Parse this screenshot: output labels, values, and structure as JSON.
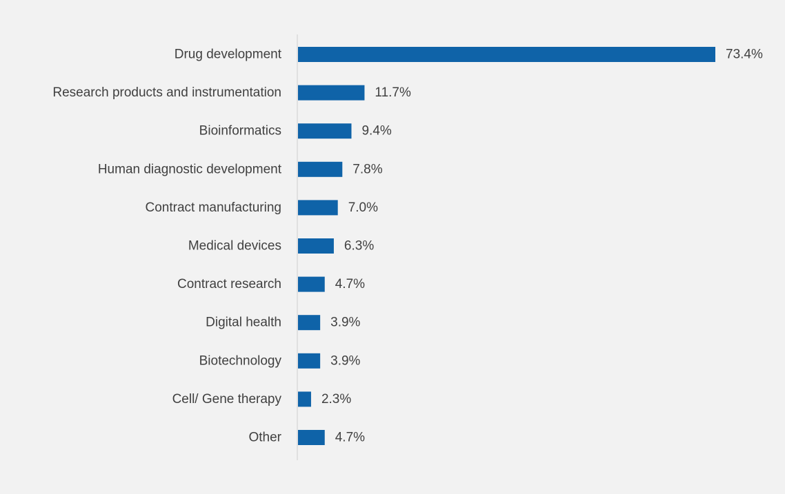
{
  "chart_data": {
    "type": "bar",
    "orientation": "horizontal",
    "categories": [
      "Drug development",
      "Research products and instrumentation",
      "Bioinformatics",
      "Human diagnostic development",
      "Contract manufacturing",
      "Medical devices",
      "Contract research",
      "Digital health",
      "Biotechnology",
      "Cell/ Gene therapy",
      "Other"
    ],
    "values": [
      73.4,
      11.7,
      9.4,
      7.8,
      7.0,
      6.3,
      4.7,
      3.9,
      3.9,
      2.3,
      4.7
    ],
    "value_labels": [
      "73.4%",
      "11.7%",
      "9.4%",
      "7.8%",
      "7.0%",
      "6.3%",
      "4.7%",
      "3.9%",
      "3.9%",
      "2.3%",
      "4.7%"
    ],
    "xlim": [
      0,
      73.4
    ],
    "grid": false,
    "legend": "none",
    "colors": {
      "bar": "#0f63a8",
      "axis": "#d9d9d9",
      "background": "#f2f2f2",
      "text": "#404040"
    }
  }
}
